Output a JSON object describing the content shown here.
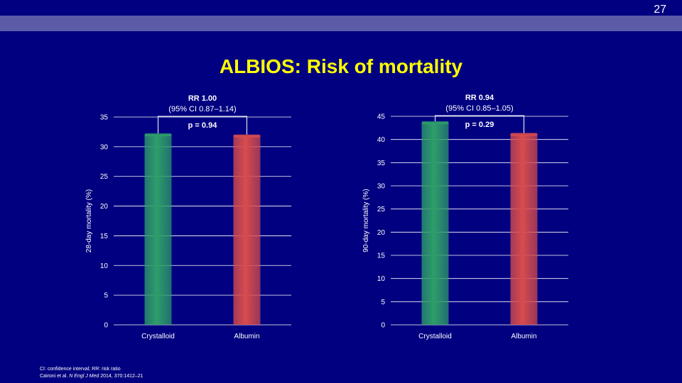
{
  "page_number": "27",
  "title": "ALBIOS: Risk of mortality",
  "colors": {
    "background": "#000080",
    "band": "#5b5ba8",
    "title": "#ffff00",
    "crystalloid": "#2e9e6a",
    "albumin": "#d84c4c"
  },
  "footer": {
    "line1": "CI: confidence interval; RR: risk ratio",
    "line2_pre": "Caironi et al. ",
    "line2_journal": "N Engl J Med",
    "line2_post": " 2014, 370:1412–21"
  },
  "chart_data": [
    {
      "type": "bar",
      "categories": [
        "Crystalloid",
        "Albumin"
      ],
      "values": [
        32.0,
        31.8
      ],
      "ylabel": "28-day mortality (%)",
      "xlabel": "",
      "ylim": [
        0,
        35
      ],
      "yticks": [
        0,
        5,
        10,
        15,
        20,
        25,
        30,
        35
      ],
      "grid": true,
      "annotation": {
        "rr": "RR 1.00",
        "ci": "(95% CI 0.87–1.14)",
        "p": "p = 0.94"
      }
    },
    {
      "type": "bar",
      "categories": [
        "Crystalloid",
        "Albumin"
      ],
      "values": [
        43.6,
        41.1
      ],
      "ylabel": "90-day mortality (%)",
      "xlabel": "",
      "ylim": [
        0,
        45
      ],
      "yticks": [
        0,
        5,
        10,
        15,
        20,
        25,
        30,
        35,
        40,
        45
      ],
      "grid": true,
      "annotation": {
        "rr": "RR 0.94",
        "ci": "(95% CI 0.85–1.05)",
        "p": "p = 0.29"
      }
    }
  ]
}
